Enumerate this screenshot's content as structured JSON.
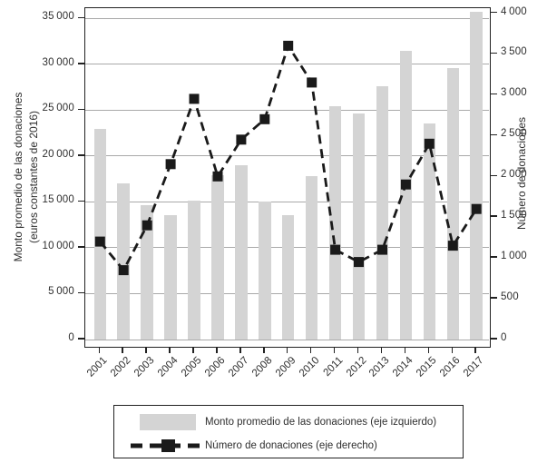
{
  "chart_data": {
    "type": "combo",
    "title": "",
    "categories": [
      "2001",
      "2002",
      "2003",
      "2004",
      "2005",
      "2006",
      "2007",
      "2008",
      "2009",
      "2010",
      "2011",
      "2012",
      "2013",
      "2014",
      "2015",
      "2016",
      "2017"
    ],
    "series": [
      {
        "name": "Monto promedio de las donaciones (eje izquierdo)",
        "type": "bar",
        "axis": "left",
        "color": "#d4d4d4",
        "values": [
          23000,
          17000,
          14600,
          13600,
          15100,
          17900,
          19000,
          15000,
          13600,
          17800,
          25400,
          24600,
          27600,
          31500,
          23600,
          29600,
          35700
        ]
      },
      {
        "name": "Número de donaciones (eje derecho)",
        "type": "line",
        "axis": "right",
        "color": "#1a1a1a",
        "dashed": true,
        "marker": "square",
        "values": [
          1200,
          850,
          1400,
          2150,
          2950,
          2000,
          2450,
          2700,
          3600,
          3150,
          1100,
          950,
          1100,
          1900,
          2400,
          1150,
          1600
        ]
      }
    ],
    "left_axis": {
      "title_line1": "Monto promedio de las donaciones",
      "title_line2": "(euros constantes de 2016)",
      "min": 0,
      "max": 35000,
      "tick_step": 5000,
      "tick_values": [
        0,
        5000,
        10000,
        15000,
        20000,
        25000,
        30000,
        35000
      ],
      "tick_labels": [
        "0",
        "5 000",
        "10 000",
        "15 000",
        "20 000",
        "25 000",
        "30 000",
        "35 000"
      ]
    },
    "right_axis": {
      "title": "Número de donaciones",
      "min": 0,
      "max": 4000,
      "tick_step": 500,
      "tick_values": [
        0,
        500,
        1000,
        1500,
        2000,
        2500,
        3000,
        3500,
        4000
      ],
      "tick_labels": [
        "0",
        "500",
        "1 000",
        "1 500",
        "2 000",
        "2 500",
        "3 000",
        "3 500",
        "4 000"
      ]
    },
    "grid": true,
    "grid_color": "#a9a9a9",
    "legend": {
      "position": "bottom",
      "entries": [
        {
          "label": "Monto promedio de las donaciones (eje izquierdo)",
          "swatch": "gray-bar"
        },
        {
          "label": "Número de donaciones (eje derecho)",
          "swatch": "dashed-line-square-marker"
        }
      ]
    }
  }
}
